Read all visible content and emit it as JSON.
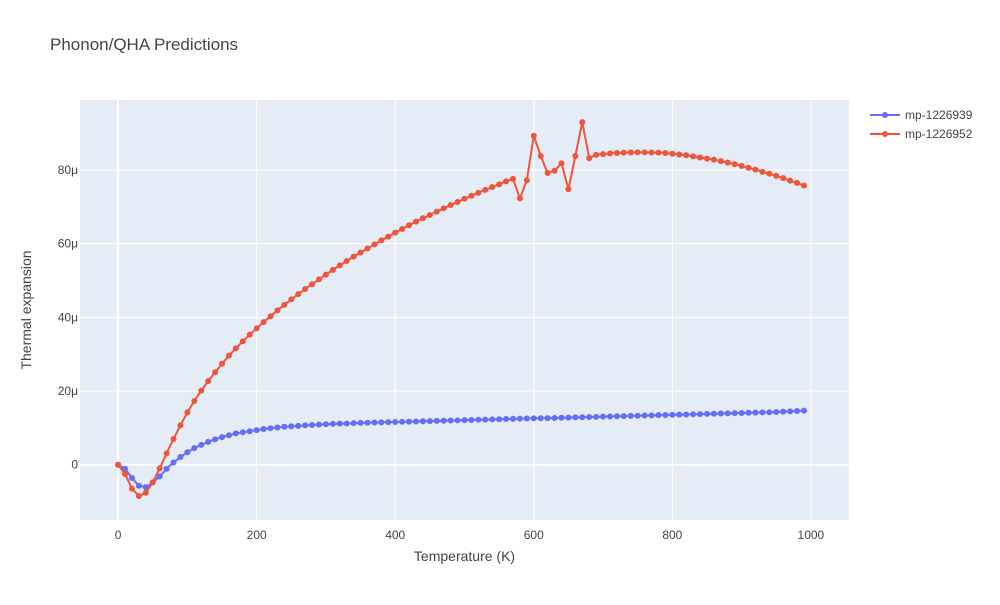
{
  "chart_data": {
    "type": "line",
    "title": "Phonon/QHA Predictions",
    "xlabel": "Temperature (K)",
    "ylabel": "Thermal expansion",
    "xlim": [
      -55,
      1055
    ],
    "ylim": [
      -1.5e-05,
      9.9e-05
    ],
    "x_ticks": [
      0,
      200,
      400,
      600,
      800,
      1000
    ],
    "x_tick_labels": [
      "0",
      "200",
      "400",
      "600",
      "800",
      "1000"
    ],
    "y_ticks": [
      0,
      2e-05,
      4e-05,
      6e-05,
      8e-05
    ],
    "y_tick_labels": [
      "0",
      "20μ",
      "40μ",
      "60μ",
      "80μ"
    ],
    "grid": true,
    "legend_position": "top-right",
    "background": "#e5ecf6",
    "series": [
      {
        "name": "mp-1226939",
        "color": "#636efa",
        "x": [
          0,
          10,
          20,
          30,
          40,
          50,
          60,
          70,
          80,
          90,
          100,
          110,
          120,
          130,
          140,
          150,
          160,
          170,
          180,
          190,
          200,
          210,
          220,
          230,
          240,
          250,
          260,
          270,
          280,
          290,
          300,
          310,
          320,
          330,
          340,
          350,
          360,
          370,
          380,
          390,
          400,
          410,
          420,
          430,
          440,
          450,
          460,
          470,
          480,
          490,
          500,
          510,
          520,
          530,
          540,
          550,
          560,
          570,
          580,
          590,
          600,
          610,
          620,
          630,
          640,
          650,
          660,
          670,
          680,
          690,
          700,
          710,
          720,
          730,
          740,
          750,
          760,
          770,
          780,
          790,
          800,
          810,
          820,
          830,
          840,
          850,
          860,
          870,
          880,
          890,
          900,
          910,
          920,
          930,
          940,
          950,
          960,
          970,
          980,
          990
        ],
        "y": [
          0,
          -1.1e-06,
          -3.6e-06,
          -5.7e-06,
          -6.1e-06,
          -4.8e-06,
          -3.2e-06,
          -1.1e-06,
          6e-07,
          2.1e-06,
          3.4e-06,
          4.5e-06,
          5.4e-06,
          6.2e-06,
          6.9e-06,
          7.5e-06,
          8e-06,
          8.5e-06,
          8.8e-06,
          9.1e-06,
          9.4e-06,
          9.7e-06,
          9.9e-06,
          1.01e-05,
          1.03e-05,
          1.04e-05,
          1.055e-05,
          1.07e-05,
          1.08e-05,
          1.09e-05,
          1.1e-05,
          1.11e-05,
          1.115e-05,
          1.12e-05,
          1.13e-05,
          1.135e-05,
          1.14e-05,
          1.145e-05,
          1.15e-05,
          1.155e-05,
          1.16e-05,
          1.165e-05,
          1.17e-05,
          1.175e-05,
          1.18e-05,
          1.185e-05,
          1.19e-05,
          1.195e-05,
          1.2e-05,
          1.205e-05,
          1.21e-05,
          1.215e-05,
          1.22e-05,
          1.225e-05,
          1.23e-05,
          1.235e-05,
          1.24e-05,
          1.245e-05,
          1.25e-05,
          1.255e-05,
          1.26e-05,
          1.262e-05,
          1.265e-05,
          1.27e-05,
          1.275e-05,
          1.28e-05,
          1.285e-05,
          1.29e-05,
          1.295e-05,
          1.3e-05,
          1.305e-05,
          1.31e-05,
          1.315e-05,
          1.32e-05,
          1.325e-05,
          1.33e-05,
          1.335e-05,
          1.34e-05,
          1.345e-05,
          1.35e-05,
          1.355e-05,
          1.36e-05,
          1.365e-05,
          1.37e-05,
          1.375e-05,
          1.38e-05,
          1.385e-05,
          1.39e-05,
          1.395e-05,
          1.4e-05,
          1.405e-05,
          1.41e-05,
          1.415e-05,
          1.42e-05,
          1.425e-05,
          1.43e-05,
          1.44e-05,
          1.45e-05,
          1.46e-05,
          1.47e-05
        ]
      },
      {
        "name": "mp-1226952",
        "color": "#ef553b",
        "x": [
          0,
          10,
          20,
          30,
          40,
          50,
          60,
          70,
          80,
          90,
          100,
          110,
          120,
          130,
          140,
          150,
          160,
          170,
          180,
          190,
          200,
          210,
          220,
          230,
          240,
          250,
          260,
          270,
          280,
          290,
          300,
          310,
          320,
          330,
          340,
          350,
          360,
          370,
          380,
          390,
          400,
          410,
          420,
          430,
          440,
          450,
          460,
          470,
          480,
          490,
          500,
          510,
          520,
          530,
          540,
          550,
          560,
          570,
          580,
          590,
          600,
          610,
          620,
          630,
          640,
          650,
          660,
          670,
          680,
          690,
          700,
          710,
          720,
          730,
          740,
          750,
          760,
          770,
          780,
          790,
          800,
          810,
          820,
          830,
          840,
          850,
          860,
          870,
          880,
          890,
          900,
          910,
          920,
          930,
          940,
          950,
          960,
          970,
          980,
          990
        ],
        "y": [
          0,
          -2.5e-06,
          -6.5e-06,
          -8.5e-06,
          -7.6e-06,
          -4.8e-06,
          -1e-06,
          3.1e-06,
          7e-06,
          1.07e-05,
          1.42e-05,
          1.73e-05,
          2.01e-05,
          2.27e-05,
          2.51e-05,
          2.74e-05,
          2.96e-05,
          3.16e-05,
          3.35e-05,
          3.53e-05,
          3.7e-05,
          3.87e-05,
          4.03e-05,
          4.19e-05,
          4.34e-05,
          4.49e-05,
          4.63e-05,
          4.77e-05,
          4.9e-05,
          5.03e-05,
          5.16e-05,
          5.29e-05,
          5.41e-05,
          5.53e-05,
          5.65e-05,
          5.76e-05,
          5.87e-05,
          5.98e-05,
          6.09e-05,
          6.19e-05,
          6.3e-05,
          6.4e-05,
          6.5e-05,
          6.6e-05,
          6.69e-05,
          6.78e-05,
          6.87e-05,
          6.96e-05,
          7.05e-05,
          7.13e-05,
          7.22e-05,
          7.3e-05,
          7.38e-05,
          7.46e-05,
          7.54e-05,
          7.61e-05,
          7.69e-05,
          7.76e-05,
          7.23e-05,
          7.72e-05,
          8.93e-05,
          8.38e-05,
          7.92e-05,
          7.98e-05,
          8.18e-05,
          7.48e-05,
          8.38e-05,
          9.3e-05,
          8.32e-05,
          8.41e-05,
          8.43e-05,
          8.45e-05,
          8.46e-05,
          8.47e-05,
          8.475e-05,
          8.48e-05,
          8.48e-05,
          8.475e-05,
          8.47e-05,
          8.46e-05,
          8.44e-05,
          8.42e-05,
          8.4e-05,
          8.37e-05,
          8.34e-05,
          8.31e-05,
          8.28e-05,
          8.24e-05,
          8.2e-05,
          8.16e-05,
          8.11e-05,
          8.06e-05,
          8.01e-05,
          7.95e-05,
          7.9e-05,
          7.84e-05,
          7.78e-05,
          7.71e-05,
          7.65e-05,
          7.58e-05
        ]
      }
    ]
  }
}
